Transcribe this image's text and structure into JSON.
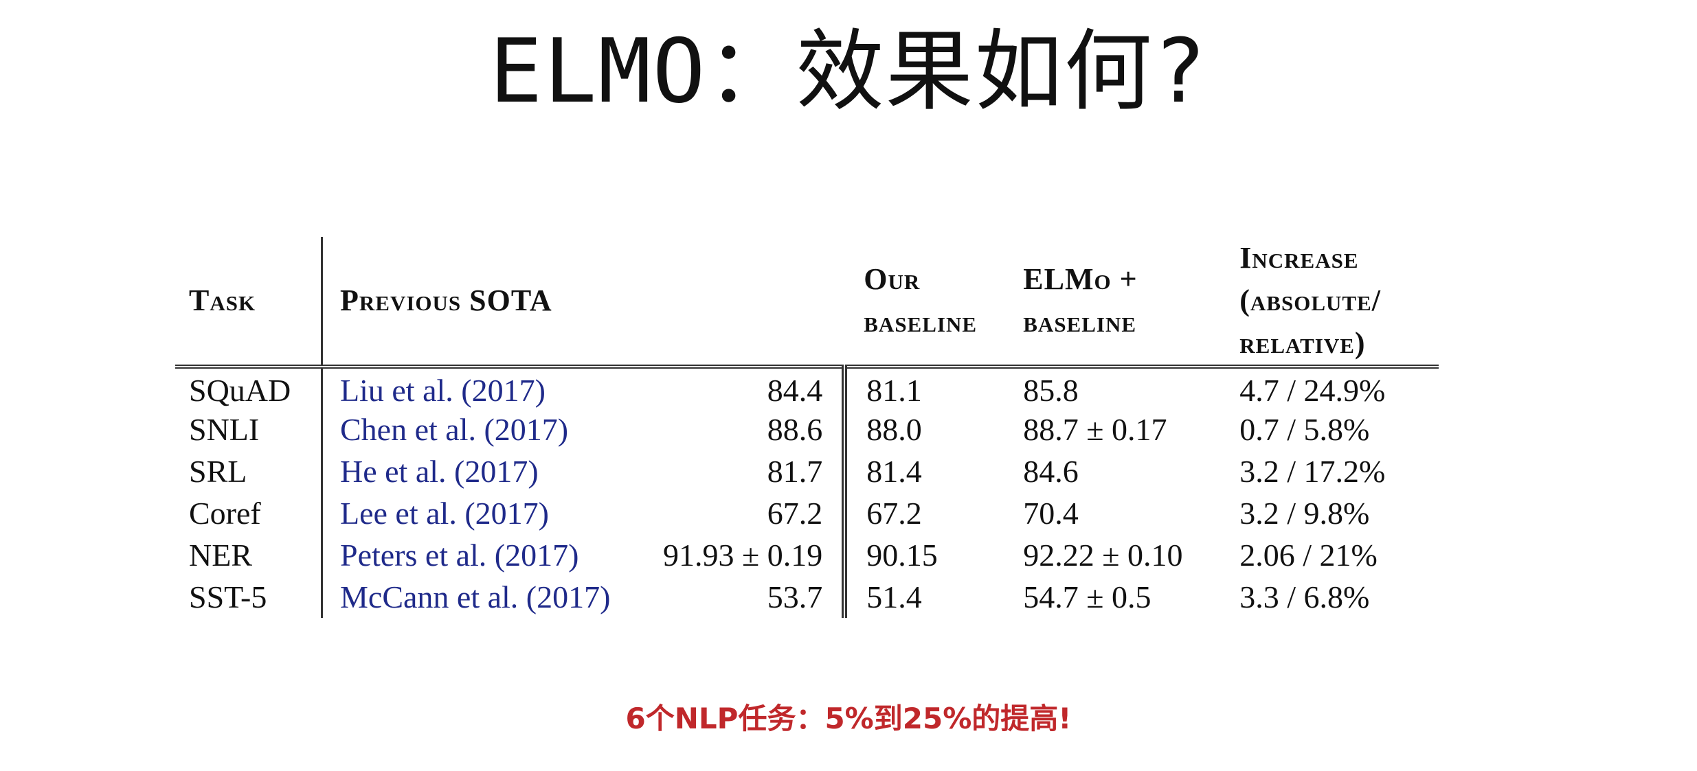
{
  "slide": {
    "title": "ELMO：效果如何?",
    "footnote": "6个NLP任务：5%到25%的提高!"
  },
  "table": {
    "headers": {
      "task": "Task",
      "previous_sota": "Previous SOTA",
      "our_baseline_1": "Our",
      "our_baseline_2": "baseline",
      "elmo_baseline_1": "ELMo +",
      "elmo_baseline_2": "baseline",
      "increase_1": "Increase",
      "increase_2": "(absolute/",
      "increase_3": "relative)"
    },
    "rows": [
      {
        "task": "SQuAD",
        "citation": "Liu et al. (2017)",
        "sota": "84.4",
        "baseline": "81.1",
        "elmo": "85.8",
        "increase": "4.7 / 24.9%"
      },
      {
        "task": "SNLI",
        "citation": "Chen et al. (2017)",
        "sota": "88.6",
        "baseline": "88.0",
        "elmo": "88.7 ± 0.17",
        "increase": "0.7 / 5.8%"
      },
      {
        "task": "SRL",
        "citation": "He et al. (2017)",
        "sota": "81.7",
        "baseline": "81.4",
        "elmo": "84.6",
        "increase": "3.2 / 17.2%"
      },
      {
        "task": "Coref",
        "citation": "Lee et al. (2017)",
        "sota": "67.2",
        "baseline": "67.2",
        "elmo": "70.4",
        "increase": "3.2 / 9.8%"
      },
      {
        "task": "NER",
        "citation": "Peters et al. (2017)",
        "sota": "91.93 ± 0.19",
        "baseline": "90.15",
        "elmo": "92.22 ± 0.10",
        "increase": "2.06 / 21%"
      },
      {
        "task": "SST-5",
        "citation": "McCann et al. (2017)",
        "sota": "53.7",
        "baseline": "51.4",
        "elmo": "54.7 ± 0.5",
        "increase": "3.3 / 6.8%"
      }
    ]
  }
}
